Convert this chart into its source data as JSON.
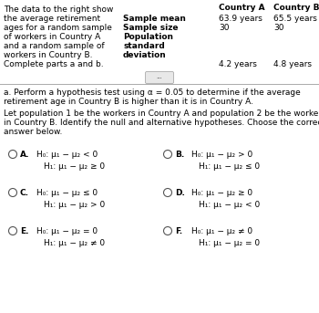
{
  "bg_color": "#ffffff",
  "text_color": "#000000",
  "title_paragraph": "The data to the right show\nthe average retirement\nages for a random sample\nof workers in Country A\nand a random sample of\nworkers in Country B.\nComplete parts a and b.",
  "row_labels": [
    "Sample mean",
    "Sample size",
    "Population",
    "standard",
    "deviation"
  ],
  "col_a_header": "Country A",
  "col_b_header": "Country B",
  "col_a_vals": [
    "63.9 years",
    "30",
    "",
    "",
    "4.2 years"
  ],
  "col_b_vals": [
    "65.5 years",
    "30",
    "",
    "",
    "4.8 years"
  ],
  "section_a_line1": "a. Perform a hypothesis test using α = 0.05 to determine if the average",
  "section_a_line2": "retirement age in Country B is higher than it is in Country A.",
  "section_b_line1": "Let population 1 be the workers in Country A and population 2 be the workers",
  "section_b_line2": "in Country B. Identify the null and alternative hypotheses. Choose the correct",
  "section_b_line3": "answer below.",
  "options": {
    "A": [
      "H₀: μ₁ − μ₂ < 0",
      "H₁: μ₁ − μ₂ ≥ 0"
    ],
    "B": [
      "H₀: μ₁ − μ₂ > 0",
      "H₁: μ₁ − μ₂ ≤ 0"
    ],
    "C": [
      "H₀: μ₁ − μ₂ ≤ 0",
      "H₁: μ₁ − μ₂ > 0"
    ],
    "D": [
      "H₀: μ₁ − μ₂ ≥ 0",
      "H₁: μ₁ − μ₂ < 0"
    ],
    "E": [
      "H₀: μ₁ − μ₂ = 0",
      "H₁: μ₁ − μ₂ ≠ 0"
    ],
    "F": [
      "H₀: μ₁ − μ₂ ≠ 0",
      "H₁: μ₁ − μ₂ = 0"
    ]
  }
}
